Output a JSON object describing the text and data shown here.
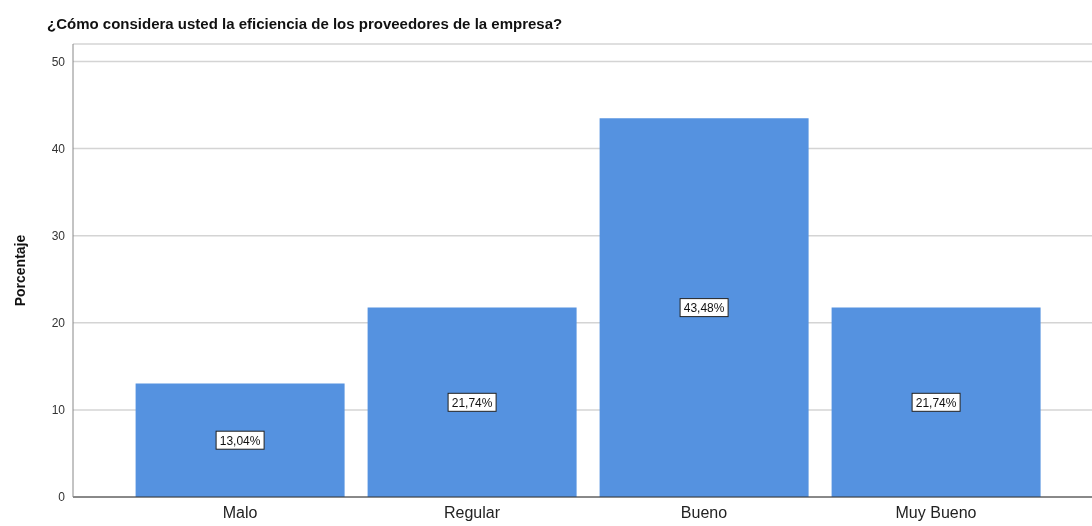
{
  "chart_data": {
    "type": "bar",
    "title": "¿Cómo considera usted la eficiencia de los proveedores de la empresa?",
    "ylabel": "Porcentaje",
    "categories": [
      "Malo",
      "Regular",
      "Bueno",
      "Muy Bueno"
    ],
    "values": [
      13.04,
      21.74,
      43.48,
      21.74
    ],
    "value_labels": [
      "13,04%",
      "21,74%",
      "43,48%",
      "21,74%"
    ],
    "color": "#5592e0",
    "ylim": [
      0,
      52
    ],
    "yticks": [
      0,
      10,
      20,
      30,
      40,
      50
    ],
    "grid": "y"
  }
}
